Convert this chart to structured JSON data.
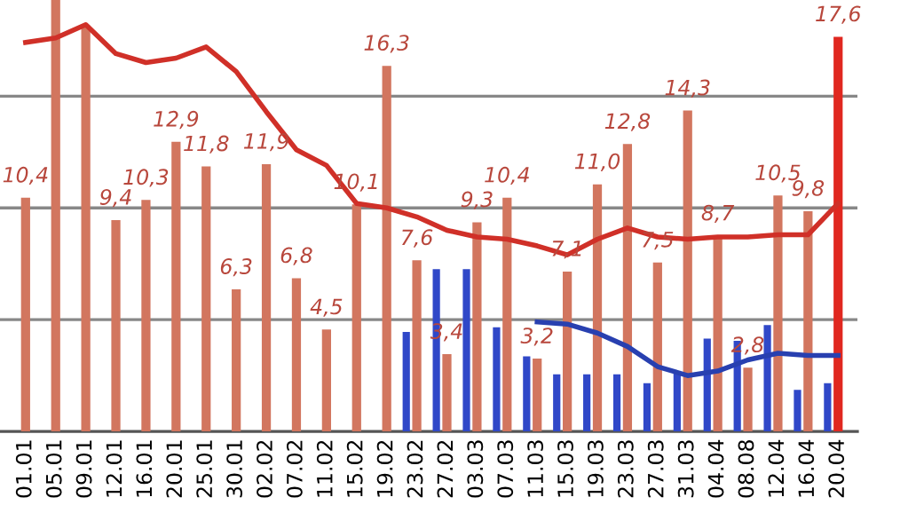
{
  "chart_data": {
    "type": "bar",
    "categories": [
      "01.01",
      "05.01",
      "09.01",
      "12.01",
      "16.01",
      "20.01",
      "25.01",
      "30.01",
      "02.02",
      "07.02",
      "11.02",
      "15.02",
      "19.02",
      "23.02",
      "27.02",
      "03.03",
      "07.03",
      "11.03",
      "15.03",
      "19.03",
      "23.03",
      "27.03",
      "31.03",
      "04.04",
      "08.08",
      "12.04",
      "16.04",
      "20.04"
    ],
    "series": [
      {
        "color": "#d2765f",
        "values": [
          10.4,
          19.3,
          18.1,
          9.4,
          10.3,
          12.9,
          11.8,
          6.3,
          11.9,
          6.8,
          4.5,
          10.1,
          16.3,
          7.6,
          3.4,
          9.3,
          10.4,
          3.2,
          7.1,
          11.0,
          12.8,
          7.5,
          14.3,
          8.7,
          2.8,
          10.5,
          9.8,
          null
        ],
        "value_labels": [
          "10,4",
          null,
          null,
          "9,4",
          "10,3",
          "12,9",
          "11,8",
          "6,3",
          "11,9",
          "6,8",
          "4,5",
          "10,1",
          "16,3",
          "7,6",
          "3,4",
          "9,3",
          "10,4",
          "3,2",
          "7,1",
          "11,0",
          "12,8",
          "7,5",
          "14,3",
          "8,7",
          "2,8",
          "10,5",
          "9,8",
          null
        ]
      },
      {
        "color": "#3048c8",
        "values": [
          null,
          null,
          null,
          null,
          null,
          null,
          null,
          null,
          null,
          null,
          null,
          null,
          null,
          4.4,
          7.2,
          7.2,
          4.6,
          3.3,
          2.5,
          2.5,
          2.5,
          2.1,
          2.6,
          4.1,
          4.0,
          4.7,
          1.8,
          2.1
        ]
      },
      {
        "color": "#e02820",
        "values": [
          null,
          null,
          null,
          null,
          null,
          null,
          null,
          null,
          null,
          null,
          null,
          null,
          null,
          null,
          null,
          null,
          null,
          null,
          null,
          null,
          null,
          null,
          null,
          null,
          null,
          null,
          null,
          17.6
        ],
        "value_labels": [
          null,
          null,
          null,
          null,
          null,
          null,
          null,
          null,
          null,
          null,
          null,
          null,
          null,
          null,
          null,
          null,
          null,
          null,
          null,
          null,
          null,
          null,
          null,
          null,
          null,
          null,
          null,
          "17,6"
        ]
      },
      {
        "type": "line",
        "color": "#d03028",
        "values": [
          17.4,
          17.6,
          18.2,
          16.9,
          16.5,
          16.7,
          17.2,
          16.1,
          14.3,
          12.6,
          11.9,
          10.2,
          10.0,
          9.6,
          9.0,
          8.7,
          8.6,
          8.3,
          7.9,
          8.6,
          9.1,
          8.7,
          8.6,
          8.7,
          8.7,
          8.8,
          8.8,
          10.2
        ]
      },
      {
        "type": "line",
        "color": "#2840b0",
        "values": [
          null,
          null,
          null,
          null,
          null,
          null,
          null,
          null,
          null,
          null,
          null,
          null,
          null,
          null,
          null,
          null,
          null,
          4.9,
          4.8,
          4.4,
          3.8,
          2.9,
          2.5,
          2.7,
          3.2,
          3.5,
          3.4,
          3.4
        ]
      }
    ],
    "ylim": [
      0,
      19.3
    ],
    "yticks": [
      {
        "value": 5,
        "label": null
      },
      {
        "value": 10,
        "label": null
      },
      {
        "value": 15,
        "label": null
      }
    ],
    "tick_labels": "x",
    "grid": "y",
    "marker": "none",
    "line_style": "solid",
    "legend": false
  }
}
